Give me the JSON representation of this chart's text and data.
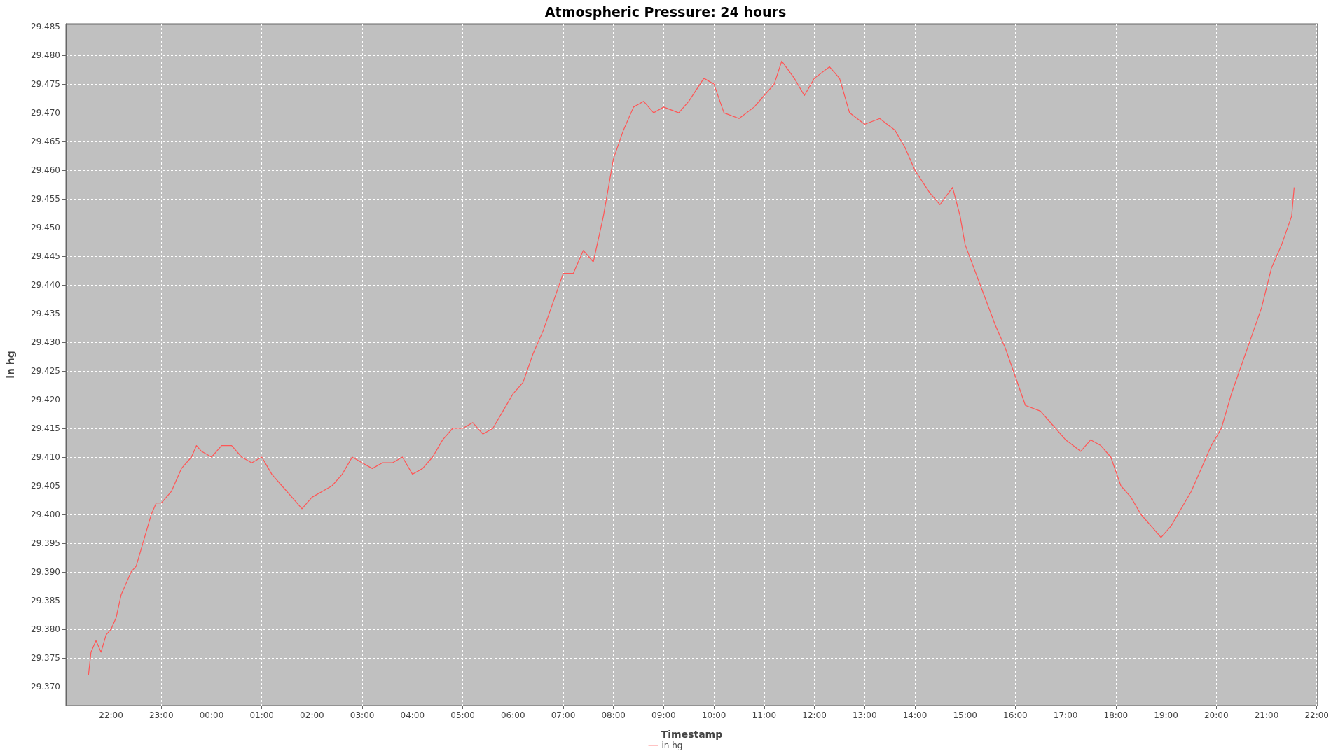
{
  "chart_data": {
    "type": "line",
    "title": "Atmospheric Pressure: 24 hours",
    "xlabel": "Timestamp",
    "ylabel": "in hg",
    "legend": "bottom",
    "grid": true,
    "marker": "none",
    "line_style": "solid",
    "xlim": [
      "--01-01T21:06",
      "--01-02T22:01"
    ],
    "ylim": [
      29.3667,
      29.4855
    ],
    "xticks": [
      {
        "value": "--01-01T22:00",
        "label": "22:00"
      },
      {
        "value": "--01-01T23:00",
        "label": "23:00"
      },
      {
        "value": "--01-02T00:00",
        "label": "00:00"
      },
      {
        "value": "--01-02T01:00",
        "label": "01:00"
      },
      {
        "value": "--01-02T02:00",
        "label": "02:00"
      },
      {
        "value": "--01-02T03:00",
        "label": "03:00"
      },
      {
        "value": "--01-02T04:00",
        "label": "04:00"
      },
      {
        "value": "--01-02T05:00",
        "label": "05:00"
      },
      {
        "value": "--01-02T06:00",
        "label": "06:00"
      },
      {
        "value": "--01-02T07:00",
        "label": "07:00"
      },
      {
        "value": "--01-02T08:00",
        "label": "08:00"
      },
      {
        "value": "--01-02T09:00",
        "label": "09:00"
      },
      {
        "value": "--01-02T10:00",
        "label": "10:00"
      },
      {
        "value": "--01-02T11:00",
        "label": "11:00"
      },
      {
        "value": "--01-02T12:00",
        "label": "12:00"
      },
      {
        "value": "--01-02T13:00",
        "label": "13:00"
      },
      {
        "value": "--01-02T14:00",
        "label": "14:00"
      },
      {
        "value": "--01-02T15:00",
        "label": "15:00"
      },
      {
        "value": "--01-02T16:00",
        "label": "16:00"
      },
      {
        "value": "--01-02T17:00",
        "label": "17:00"
      },
      {
        "value": "--01-02T18:00",
        "label": "18:00"
      },
      {
        "value": "--01-02T19:00",
        "label": "19:00"
      },
      {
        "value": "--01-02T20:00",
        "label": "20:00"
      },
      {
        "value": "--01-02T21:00",
        "label": "21:00"
      },
      {
        "value": "--01-02T22:00",
        "label": "22:00"
      }
    ],
    "yticks": [
      {
        "value": 29.37,
        "label": "29.370"
      },
      {
        "value": 29.375,
        "label": "29.375"
      },
      {
        "value": 29.38,
        "label": "29.380"
      },
      {
        "value": 29.385,
        "label": "29.385"
      },
      {
        "value": 29.39,
        "label": "29.390"
      },
      {
        "value": 29.395,
        "label": "29.395"
      },
      {
        "value": 29.4,
        "label": "29.400"
      },
      {
        "value": 29.405,
        "label": "29.405"
      },
      {
        "value": 29.41,
        "label": "29.410"
      },
      {
        "value": 29.415,
        "label": "29.415"
      },
      {
        "value": 29.42,
        "label": "29.420"
      },
      {
        "value": 29.425,
        "label": "29.425"
      },
      {
        "value": 29.43,
        "label": "29.430"
      },
      {
        "value": 29.435,
        "label": "29.435"
      },
      {
        "value": 29.44,
        "label": "29.440"
      },
      {
        "value": 29.445,
        "label": "29.445"
      },
      {
        "value": 29.45,
        "label": "29.450"
      },
      {
        "value": 29.455,
        "label": "29.455"
      },
      {
        "value": 29.46,
        "label": "29.460"
      },
      {
        "value": 29.465,
        "label": "29.465"
      },
      {
        "value": 29.47,
        "label": "29.470"
      },
      {
        "value": 29.475,
        "label": "29.475"
      },
      {
        "value": 29.48,
        "label": "29.480"
      },
      {
        "value": 29.485,
        "label": "29.485"
      }
    ],
    "x": [
      "--01-01T21:33",
      "--01-01T21:36",
      "--01-01T21:42",
      "--01-01T21:48",
      "--01-01T21:54",
      "--01-01T22:00",
      "--01-01T22:06",
      "--01-01T22:12",
      "--01-01T22:18",
      "--01-01T22:24",
      "--01-01T22:30",
      "--01-01T22:36",
      "--01-01T22:42",
      "--01-01T22:48",
      "--01-01T22:54",
      "--01-01T23:00",
      "--01-01T23:06",
      "--01-01T23:12",
      "--01-01T23:18",
      "--01-01T23:24",
      "--01-01T23:30",
      "--01-01T23:36",
      "--01-01T23:42",
      "--01-01T23:48",
      "--01-02T00:00",
      "--01-02T00:12",
      "--01-02T00:24",
      "--01-02T00:36",
      "--01-02T00:48",
      "--01-02T01:00",
      "--01-02T01:12",
      "--01-02T01:24",
      "--01-02T01:36",
      "--01-02T01:48",
      "--01-02T02:00",
      "--01-02T02:12",
      "--01-02T02:24",
      "--01-02T02:36",
      "--01-02T02:48",
      "--01-02T03:00",
      "--01-02T03:12",
      "--01-02T03:24",
      "--01-02T03:36",
      "--01-02T03:48",
      "--01-02T04:00",
      "--01-02T04:12",
      "--01-02T04:24",
      "--01-02T04:36",
      "--01-02T04:48",
      "--01-02T05:00",
      "--01-02T05:12",
      "--01-02T05:24",
      "--01-02T05:36",
      "--01-02T05:48",
      "--01-02T06:00",
      "--01-02T06:12",
      "--01-02T06:24",
      "--01-02T06:36",
      "--01-02T06:48",
      "--01-02T07:00",
      "--01-02T07:12",
      "--01-02T07:24",
      "--01-02T07:36",
      "--01-02T07:48",
      "--01-02T08:00",
      "--01-02T08:12",
      "--01-02T08:24",
      "--01-02T08:36",
      "--01-02T08:48",
      "--01-02T09:00",
      "--01-02T09:18",
      "--01-02T09:30",
      "--01-02T09:48",
      "--01-02T10:00",
      "--01-02T10:12",
      "--01-02T10:30",
      "--01-02T10:48",
      "--01-02T11:00",
      "--01-02T11:12",
      "--01-02T11:21",
      "--01-02T11:36",
      "--01-02T11:48",
      "--01-02T12:00",
      "--01-02T12:18",
      "--01-02T12:30",
      "--01-02T12:42",
      "--01-02T13:00",
      "--01-02T13:18",
      "--01-02T13:36",
      "--01-02T13:48",
      "--01-02T14:00",
      "--01-02T14:18",
      "--01-02T14:30",
      "--01-02T14:45",
      "--01-02T14:54",
      "--01-02T15:00",
      "--01-02T15:18",
      "--01-02T15:36",
      "--01-02T15:48",
      "--01-02T16:00",
      "--01-02T16:12",
      "--01-02T16:30",
      "--01-02T16:48",
      "--01-02T17:00",
      "--01-02T17:18",
      "--01-02T17:30",
      "--01-02T17:42",
      "--01-02T17:54",
      "--01-02T18:06",
      "--01-02T18:18",
      "--01-02T18:30",
      "--01-02T18:42",
      "--01-02T18:54",
      "--01-02T19:06",
      "--01-02T19:18",
      "--01-02T19:30",
      "--01-02T19:42",
      "--01-02T19:54",
      "--01-02T20:06",
      "--01-02T20:18",
      "--01-02T20:30",
      "--01-02T20:42",
      "--01-02T20:54",
      "--01-02T21:06",
      "--01-02T21:18",
      "--01-02T21:30",
      "--01-02T21:33"
    ],
    "series": [
      {
        "name": "in hg",
        "color": "#ff5555",
        "values": [
          29.372,
          29.376,
          29.378,
          29.376,
          29.379,
          29.38,
          29.382,
          29.386,
          29.388,
          29.39,
          29.391,
          29.394,
          29.397,
          29.4,
          29.402,
          29.402,
          29.403,
          29.404,
          29.406,
          29.408,
          29.409,
          29.41,
          29.412,
          29.411,
          29.41,
          29.412,
          29.412,
          29.41,
          29.409,
          29.41,
          29.407,
          29.405,
          29.403,
          29.401,
          29.403,
          29.404,
          29.405,
          29.407,
          29.41,
          29.409,
          29.408,
          29.409,
          29.409,
          29.41,
          29.407,
          29.408,
          29.41,
          29.413,
          29.415,
          29.415,
          29.416,
          29.414,
          29.415,
          29.418,
          29.421,
          29.423,
          29.428,
          29.432,
          29.437,
          29.442,
          29.442,
          29.446,
          29.444,
          29.452,
          29.462,
          29.467,
          29.471,
          29.472,
          29.47,
          29.471,
          29.47,
          29.472,
          29.476,
          29.475,
          29.47,
          29.469,
          29.471,
          29.473,
          29.475,
          29.479,
          29.476,
          29.473,
          29.476,
          29.478,
          29.476,
          29.47,
          29.468,
          29.469,
          29.467,
          29.464,
          29.46,
          29.456,
          29.454,
          29.457,
          29.452,
          29.447,
          29.44,
          29.433,
          29.429,
          29.424,
          29.419,
          29.418,
          29.415,
          29.413,
          29.411,
          29.413,
          29.412,
          29.41,
          29.405,
          29.403,
          29.4,
          29.398,
          29.396,
          29.398,
          29.401,
          29.404,
          29.408,
          29.412,
          29.415,
          29.421,
          29.426,
          29.431,
          29.436,
          29.443,
          29.447,
          29.452,
          29.457
        ]
      }
    ]
  }
}
